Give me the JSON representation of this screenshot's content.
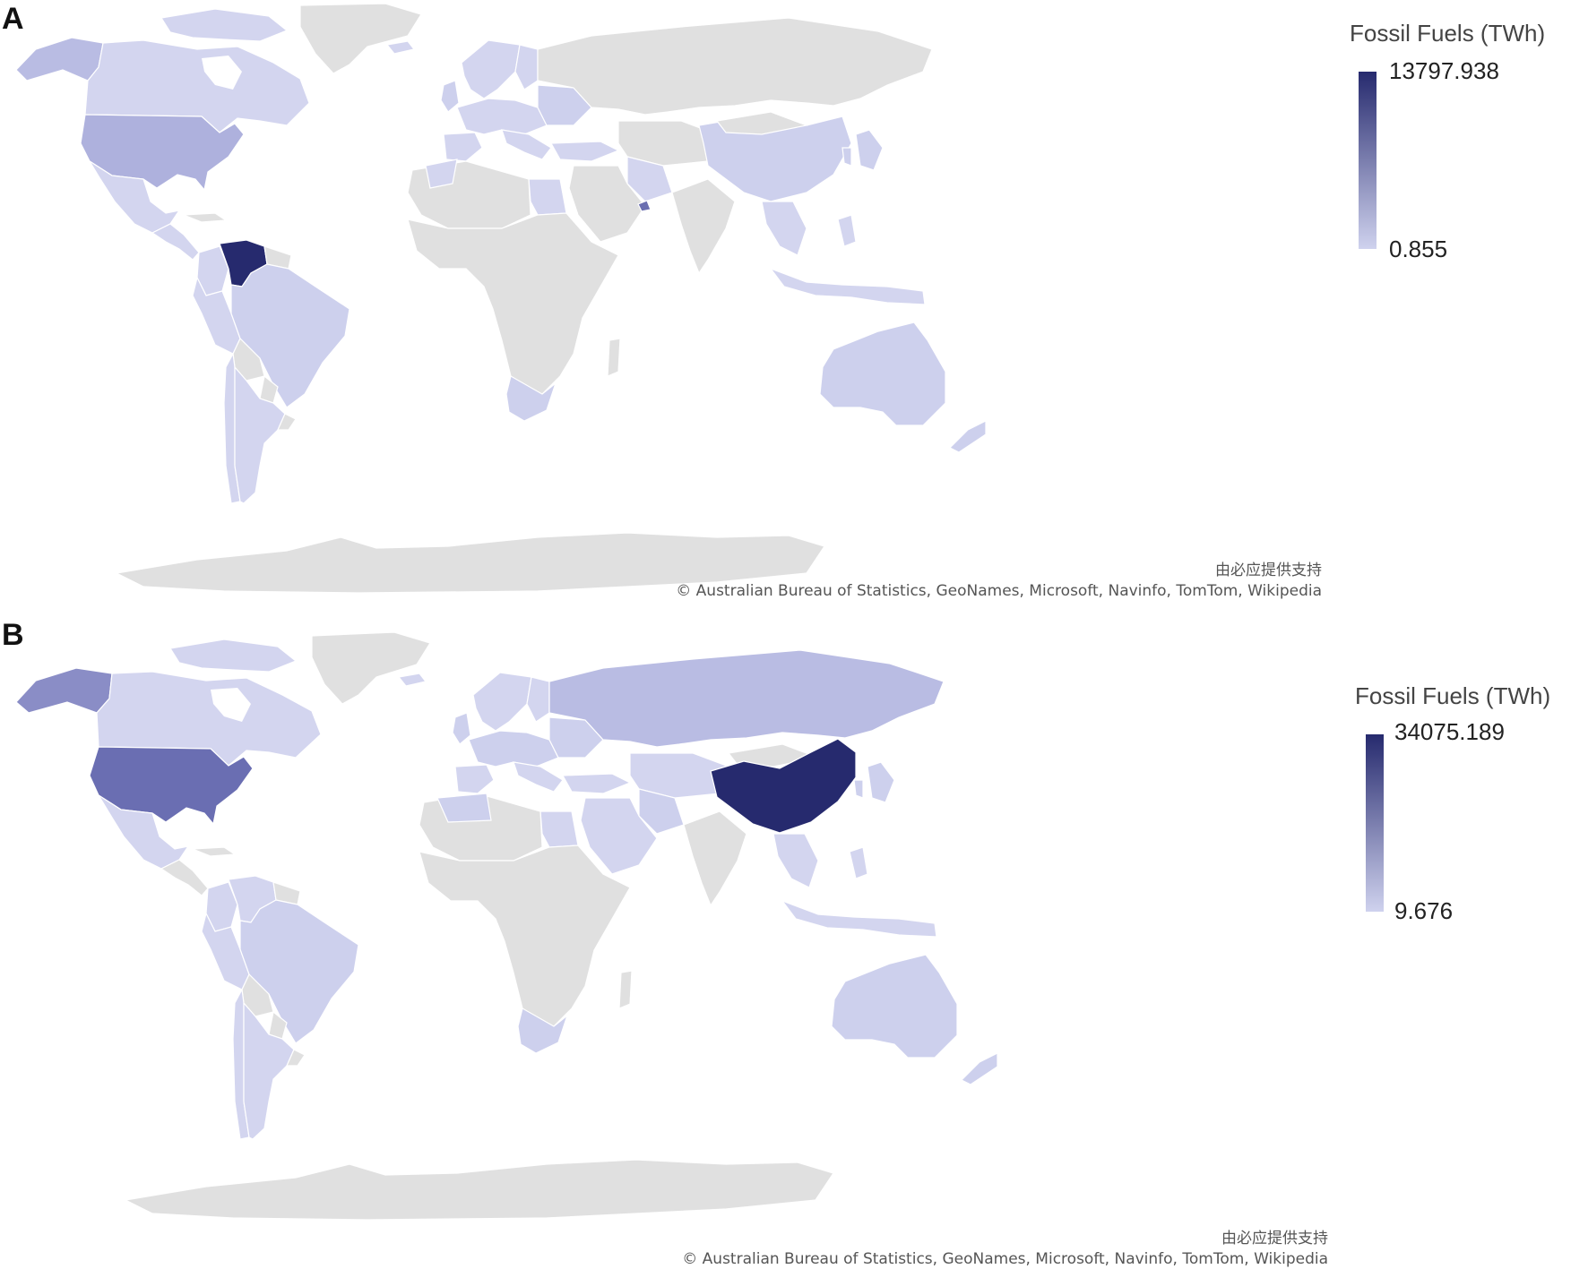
{
  "colors": {
    "no_data": "#e0e0e0",
    "scale_low": "#cfd2ee",
    "scale_high": "#262a6e",
    "background": "#ffffff"
  },
  "panels": [
    {
      "letter": "A",
      "legend": {
        "title": "Fossil Fuels (TWh)",
        "max_label": "13797.938",
        "min_label": "0.855",
        "max": 13797.938,
        "min": 0.855
      },
      "attribution": {
        "line1": "由必应提供支持",
        "line2": "© Australian Bureau of Statistics, GeoNames, Microsoft, Navinfo, TomTom, Wikipedia"
      },
      "highlighted_country": "Venezuela"
    },
    {
      "letter": "B",
      "legend": {
        "title": "Fossil Fuels (TWh)",
        "max_label": "34075.189",
        "min_label": "9.676",
        "max": 34075.189,
        "min": 9.676
      },
      "attribution": {
        "line1": "由必应提供支持",
        "line2": "© Australian Bureau of Statistics, GeoNames, Microsoft, Navinfo, TomTom, Wikipedia"
      },
      "highlighted_country": "China"
    }
  ]
}
